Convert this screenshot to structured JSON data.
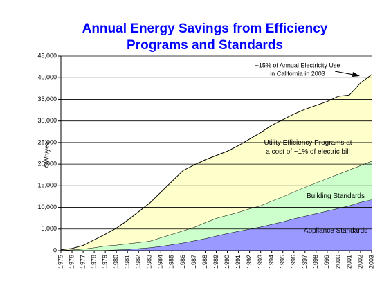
{
  "chart_data": {
    "type": "stacked-area",
    "title": [
      "Annual Energy Savings from Efficiency",
      "Programs and Standards"
    ],
    "y_label": "GWh/year",
    "annotation": [
      "~15% of Annual Electricity Use",
      "in California in 2003"
    ],
    "categories": [
      "1975",
      "1976",
      "1977",
      "1978",
      "1979",
      "1980",
      "1981",
      "1982",
      "1983",
      "1984",
      "1985",
      "1986",
      "1987",
      "1988",
      "1989",
      "1990",
      "1991",
      "1992",
      "1993",
      "1994",
      "1995",
      "1996",
      "1997",
      "1998",
      "1999",
      "2000",
      "2001",
      "2002",
      "2003"
    ],
    "series": [
      {
        "name": "Appliance Standards",
        "color": "#9999ff",
        "values": [
          0,
          0,
          0,
          0,
          100,
          200,
          300,
          500,
          700,
          1000,
          1400,
          1800,
          2300,
          2800,
          3400,
          4000,
          4500,
          5000,
          5500,
          6100,
          6700,
          7400,
          8000,
          8600,
          9200,
          9800,
          10400,
          11200,
          11800
        ]
      },
      {
        "name": "Building Standards",
        "color": "#ccffcc",
        "values": [
          100,
          200,
          400,
          700,
          1000,
          1100,
          1300,
          1400,
          1500,
          2000,
          2400,
          2800,
          3100,
          3700,
          4100,
          4200,
          4400,
          4700,
          4900,
          5400,
          5800,
          6200,
          6700,
          7100,
          7500,
          7900,
          8300,
          8500,
          8900
        ]
      },
      {
        "name": "Utility Efficiency Programs at a cost of ~1% of electric bill",
        "color": "#ffffcc",
        "values": [
          100,
          300,
          800,
          1800,
          2700,
          3900,
          5400,
          7100,
          8800,
          10500,
          12200,
          13900,
          14400,
          14500,
          14500,
          14800,
          15400,
          16100,
          16900,
          17500,
          17800,
          18000,
          18000,
          17900,
          17800,
          18000,
          17300,
          19100,
          20000
        ]
      }
    ],
    "ylim": [
      0,
      45000
    ],
    "yticks": [
      0,
      {
        "value": 5000,
        "label": "5,000"
      },
      {
        "value": 10000,
        "label": "10,000"
      },
      {
        "value": 15000,
        "label": "15,000"
      },
      {
        "value": 20000,
        "label": "20,000"
      },
      {
        "value": 25000,
        "label": "25,000"
      },
      {
        "value": 30000,
        "label": "30,000"
      },
      {
        "value": 35000,
        "label": "35,000"
      },
      {
        "value": 40000,
        "label": "40,000"
      },
      {
        "value": 45000,
        "label": "45,000"
      }
    ],
    "grid": true
  }
}
